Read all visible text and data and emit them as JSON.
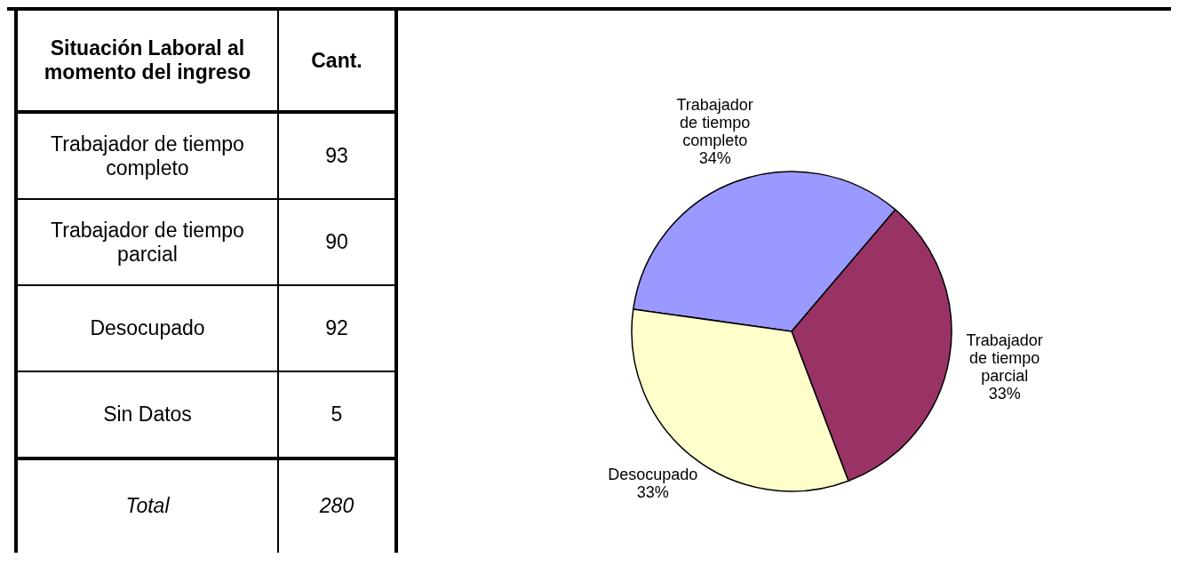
{
  "chart_data": [
    {
      "type": "other",
      "annotations": [
        "Situación Laboral al momento del ingreso",
        "Cant.",
        "Trabajador de tiempo completo",
        "93",
        "Trabajador de tiempo parcial",
        "90",
        "Desocupado",
        "92",
        "Sin Datos",
        "5",
        "Total",
        "280"
      ]
    },
    {
      "type": "pie",
      "categories": [
        "Trabajador de tiempo completo",
        "Trabajador de tiempo parcial",
        "Desocupado"
      ],
      "values": [
        34,
        33,
        33
      ],
      "colors": [
        "#9999ff",
        "#993366",
        "#ffffcc"
      ],
      "value_labels": [
        "34%",
        "33%",
        "33%"
      ],
      "legend": false
    }
  ]
}
